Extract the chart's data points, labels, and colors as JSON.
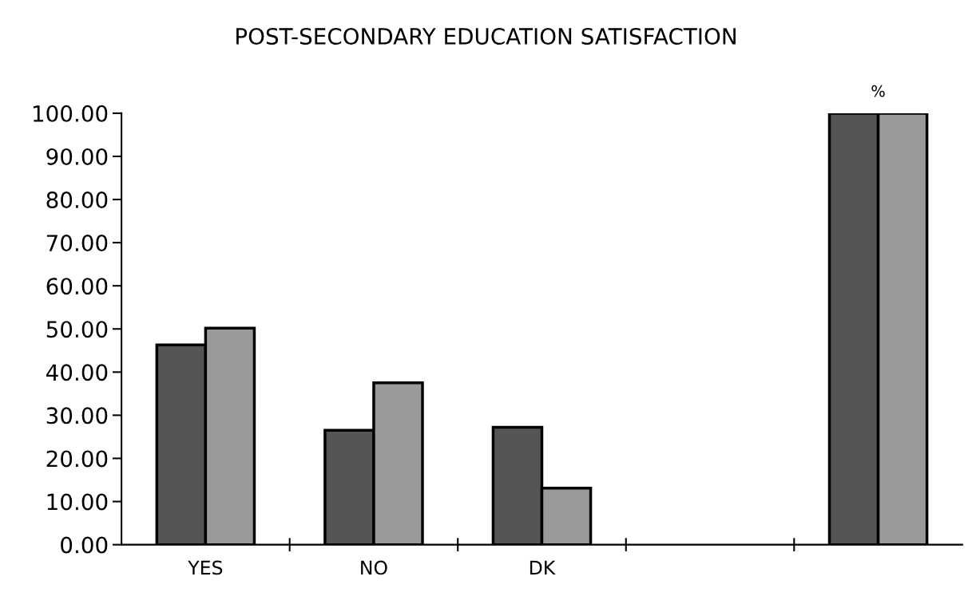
{
  "chart_data": {
    "type": "bar",
    "title": "POST-SECONDARY EDUCATION SATISFACTION",
    "categories": [
      "YES",
      "NO",
      "DK",
      null,
      null
    ],
    "series": [
      {
        "color": "#555555",
        "values": [
          46.3,
          26.5,
          27.2,
          null,
          100
        ]
      },
      {
        "color": "#9a9a9a",
        "values": [
          50.2,
          37.5,
          13.1,
          null,
          100
        ]
      }
    ],
    "ylim": [
      0,
      100
    ],
    "yticks": [
      {
        "value": 0,
        "label": "0.00"
      },
      {
        "value": 10,
        "label": "10.00"
      },
      {
        "value": 20,
        "label": "20.00"
      },
      {
        "value": 30,
        "label": "30.00"
      },
      {
        "value": 40,
        "label": "40.00"
      },
      {
        "value": 50,
        "label": "50.00"
      },
      {
        "value": 60,
        "label": "60.00"
      },
      {
        "value": 70,
        "label": "70.00"
      },
      {
        "value": 80,
        "label": "80.00"
      },
      {
        "value": 90,
        "label": "90.00"
      },
      {
        "value": 100,
        "label": "100.00"
      }
    ],
    "annotations": [
      "%"
    ],
    "grid": false,
    "legend": false
  }
}
